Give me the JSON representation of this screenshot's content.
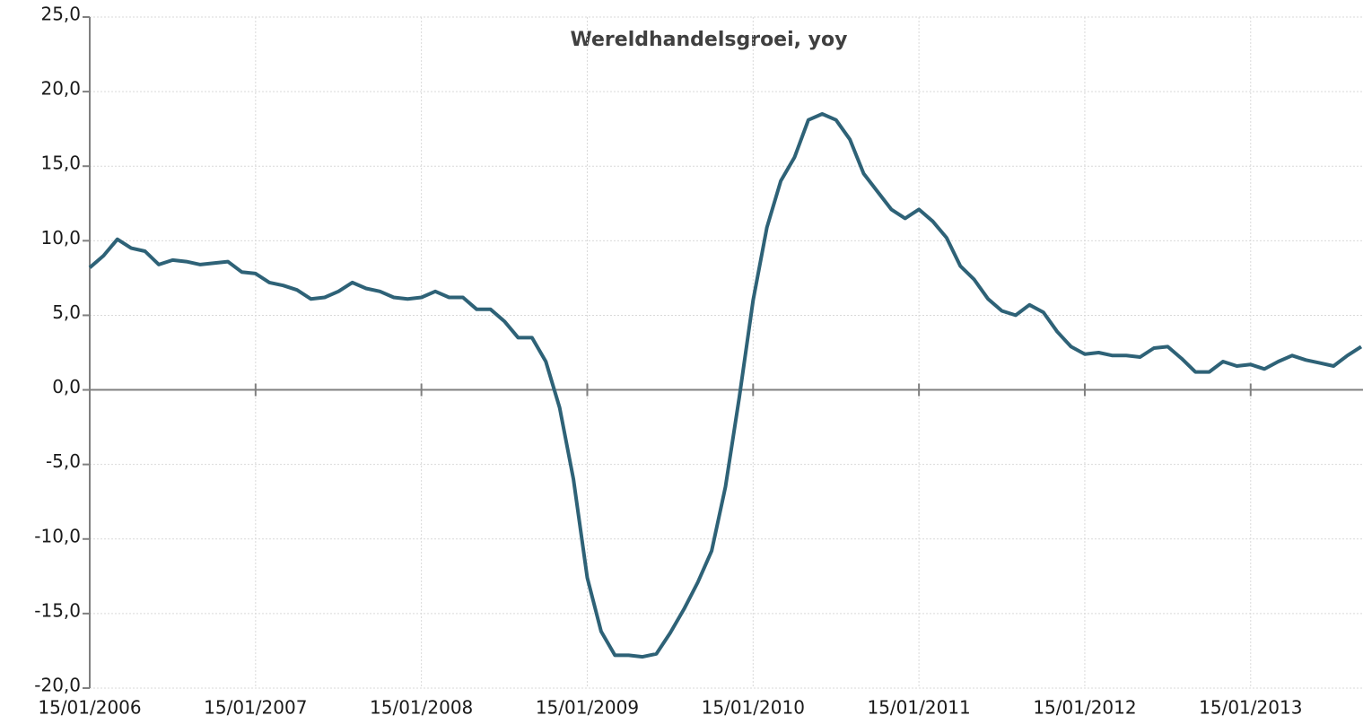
{
  "chart_data": {
    "type": "line",
    "title": "Wereldhandelsgroei, yoy",
    "categories": [
      "15/01/2006",
      null,
      null,
      null,
      null,
      null,
      null,
      null,
      null,
      null,
      null,
      null,
      "15/01/2007",
      null,
      null,
      null,
      null,
      null,
      null,
      null,
      null,
      null,
      null,
      null,
      "15/01/2008",
      null,
      null,
      null,
      null,
      null,
      null,
      null,
      null,
      null,
      null,
      null,
      "15/01/2009",
      null,
      null,
      null,
      null,
      null,
      null,
      null,
      null,
      null,
      null,
      null,
      "15/01/2010",
      null,
      null,
      null,
      null,
      null,
      null,
      null,
      null,
      null,
      null,
      null,
      "15/01/2011",
      null,
      null,
      null,
      null,
      null,
      null,
      null,
      null,
      null,
      null,
      null,
      "15/01/2012",
      null,
      null,
      null,
      null,
      null,
      null,
      null,
      null,
      null,
      null,
      null,
      "15/01/2013",
      null,
      null,
      null,
      null,
      null,
      null,
      null,
      null
    ],
    "series": [
      {
        "name": "Wereldhandelsgroei",
        "color": "#2e6277",
        "values": [
          8.2,
          9.0,
          10.1,
          9.5,
          9.3,
          8.4,
          8.7,
          8.6,
          8.4,
          8.5,
          8.6,
          7.9,
          7.8,
          7.2,
          7.0,
          6.7,
          6.1,
          6.2,
          6.6,
          7.2,
          6.8,
          6.6,
          6.2,
          6.1,
          6.2,
          6.6,
          6.2,
          6.2,
          5.4,
          5.4,
          4.6,
          3.5,
          3.5,
          1.9,
          -1.2,
          -6.0,
          -12.6,
          -16.2,
          -17.8,
          -17.8,
          -17.9,
          -17.7,
          -16.3,
          -14.7,
          -12.9,
          -10.8,
          -6.5,
          -0.5,
          6.0,
          10.9,
          14.0,
          15.6,
          18.1,
          18.5,
          18.1,
          16.8,
          14.5,
          13.3,
          12.1,
          11.5,
          12.1,
          11.3,
          10.2,
          8.3,
          7.4,
          6.1,
          5.3,
          5.0,
          5.7,
          5.2,
          3.9,
          2.9,
          2.4,
          2.5,
          2.3,
          2.3,
          2.2,
          2.8,
          2.9,
          2.1,
          1.2,
          1.2,
          1.9,
          1.6,
          1.7,
          1.4,
          1.9,
          2.3,
          2.0,
          1.8,
          1.6,
          2.3,
          2.9
        ]
      }
    ],
    "ylim": [
      -20,
      25
    ],
    "yticks": [
      {
        "value": -20,
        "label": "-20,0"
      },
      {
        "value": -15,
        "label": "-15,0"
      },
      {
        "value": -10,
        "label": "-10,0"
      },
      {
        "value": -5,
        "label": "-5,0"
      },
      {
        "value": 0,
        "label": "0,0"
      },
      {
        "value": 5,
        "label": "5,0"
      },
      {
        "value": 10,
        "label": "10,0"
      },
      {
        "value": 15,
        "label": "15,0"
      },
      {
        "value": 20,
        "label": "20,0"
      },
      {
        "value": 25,
        "label": "25,0"
      }
    ],
    "grid": true
  }
}
